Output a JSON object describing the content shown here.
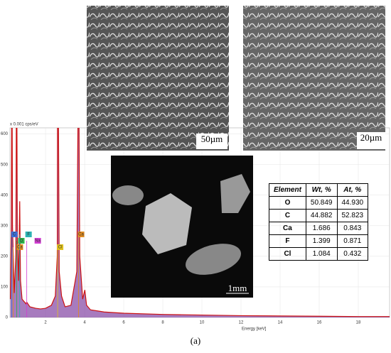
{
  "chart_data": {
    "type": "line",
    "ylabel": "x 0.001 cps/eV",
    "xlabel": "Energy [keV]",
    "xlim": [
      0.18,
      19.6
    ],
    "ylim": [
      0,
      620
    ],
    "xticks": [
      2,
      4,
      6,
      8,
      10,
      12,
      14,
      16,
      18
    ],
    "yticks": [
      0,
      100,
      200,
      300,
      400,
      500,
      600
    ],
    "grid": true,
    "series": [
      {
        "color": "#cc1111",
        "fill": "#8a4fa8",
        "x": [
          0.2,
          0.25,
          0.28,
          0.31,
          0.4,
          0.48,
          0.52,
          0.56,
          0.62,
          0.68,
          0.72,
          0.8,
          1.0,
          1.04,
          1.2,
          1.5,
          1.74,
          2.0,
          2.3,
          2.5,
          2.6,
          2.62,
          2.65,
          2.7,
          2.82,
          3.0,
          3.3,
          3.6,
          3.69,
          3.75,
          3.9,
          4.01,
          4.1,
          4.3,
          5,
          6,
          8,
          10,
          12,
          14,
          16,
          18,
          19.6
        ],
        "values": [
          60,
          300,
          900,
          300,
          80,
          200,
          900,
          250,
          120,
          380,
          120,
          60,
          45,
          50,
          35,
          30,
          28,
          30,
          40,
          70,
          200,
          900,
          800,
          150,
          70,
          35,
          40,
          150,
          900,
          200,
          60,
          90,
          40,
          25,
          18,
          14,
          10,
          8,
          6,
          5,
          4,
          3,
          3
        ]
      }
    ],
    "peak_labels": [
      {
        "label": "C",
        "x": 0.277,
        "color": "#3a6fd8"
      },
      {
        "label": "O",
        "x": 0.525,
        "color": "#2db34a"
      },
      {
        "label": "Ca",
        "x": 0.341,
        "color": "#e08a1e"
      },
      {
        "label": "F",
        "x": 0.677,
        "color": "#2db3b3"
      },
      {
        "label": "Na",
        "x": 1.04,
        "color": "#d23cd2"
      },
      {
        "label": "Cl",
        "x": 2.62,
        "color": "#e0c21e"
      },
      {
        "label": "Ca",
        "x": 3.69,
        "color": "#e08a1e"
      }
    ]
  },
  "images": [
    {
      "scale": "50µm"
    },
    {
      "scale": "20µm"
    },
    {
      "scale": "1mm"
    }
  ],
  "table": {
    "header": [
      "Element",
      "Wt, %",
      "At, %"
    ],
    "rows": [
      [
        "O",
        "50.849",
        "44.930"
      ],
      [
        "C",
        "44.882",
        "52.823"
      ],
      [
        "Ca",
        "1.686",
        "0.843"
      ],
      [
        "F",
        "1.399",
        "0.871"
      ],
      [
        "Cl",
        "1.084",
        "0.432"
      ]
    ]
  },
  "caption": "(a)"
}
